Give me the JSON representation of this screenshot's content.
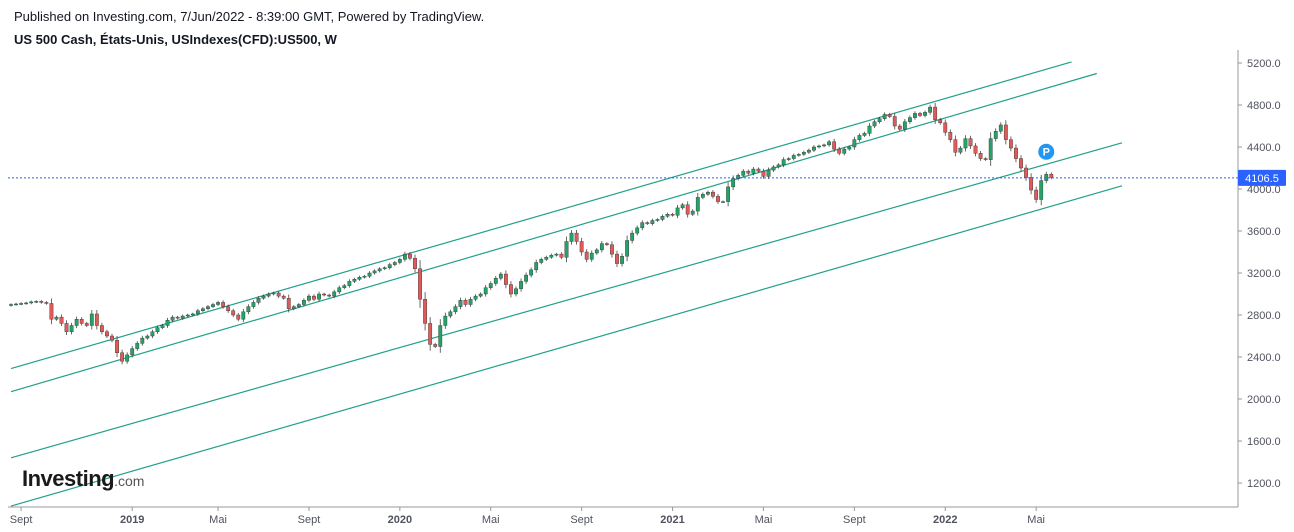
{
  "header": {
    "published": "Published on Investing.com, 7/Jun/2022 - 8:39:00 GMT, Powered by TradingView.",
    "title": "US 500 Cash, États-Unis, USIndexes(CFD):US500, W"
  },
  "logo": {
    "main": "Investing",
    "suffix": ".com"
  },
  "colors": {
    "up": "#26a269",
    "down": "#e05a5a",
    "wick": "#444444",
    "channel": "#21a08a",
    "price_line": "#2962ff",
    "price_label_bg": "#2962ff",
    "marker": "#2196f3"
  },
  "chart_data": {
    "type": "candlestick",
    "timeframe": "W",
    "ylim": [
      1000,
      5300
    ],
    "y_ticks": [
      1200,
      1600,
      2000,
      2400,
      2800,
      3200,
      3600,
      4000,
      4400,
      4800,
      5200
    ],
    "y_tick_labels": [
      "1200.0",
      "1600.0",
      "2000.0",
      "2400.0",
      "2800.0",
      "3200.0",
      "3600.0",
      "4000.0",
      "4400.0",
      "4800.0",
      "5200.0"
    ],
    "x_tick_labels": [
      "Sept",
      "2019",
      "Mai",
      "Sept",
      "2020",
      "Mai",
      "Sept",
      "2021",
      "Mai",
      "Sept",
      "2022",
      "Mai"
    ],
    "x_tick_index": [
      2,
      24,
      41,
      59,
      77,
      95,
      113,
      131,
      149,
      167,
      185,
      203
    ],
    "bold_x_labels": [
      "2019",
      "2020",
      "2021",
      "2022"
    ],
    "last_price": 4106.5,
    "last_price_label": "4106.5",
    "marker_label": "P",
    "marker_candle_index": 205,
    "marker_price": 4355,
    "channel_lines": [
      {
        "points": [
          [
            0,
            2290
          ],
          [
            210,
            5210
          ]
        ]
      },
      {
        "points": [
          [
            0,
            2070
          ],
          [
            215,
            5100
          ]
        ]
      },
      {
        "points": [
          [
            0,
            1440
          ],
          [
            220,
            4440
          ]
        ]
      },
      {
        "points": [
          [
            0,
            980
          ],
          [
            220,
            4030
          ]
        ]
      }
    ],
    "closes": [
      2900,
      2905,
      2910,
      2915,
      2925,
      2930,
      2920,
      2910,
      2760,
      2780,
      2720,
      2640,
      2700,
      2760,
      2720,
      2700,
      2810,
      2700,
      2640,
      2600,
      2560,
      2440,
      2360,
      2420,
      2480,
      2530,
      2580,
      2600,
      2640,
      2680,
      2700,
      2750,
      2780,
      2770,
      2790,
      2800,
      2810,
      2840,
      2860,
      2880,
      2900,
      2920,
      2880,
      2840,
      2800,
      2760,
      2830,
      2880,
      2920,
      2960,
      2980,
      3000,
      3010,
      2980,
      2960,
      2860,
      2880,
      2900,
      2940,
      2980,
      2950,
      3000,
      2990,
      2980,
      3020,
      3060,
      3080,
      3120,
      3140,
      3160,
      3170,
      3200,
      3220,
      3240,
      3250,
      3280,
      3300,
      3330,
      3380,
      3340,
      3240,
      2950,
      2720,
      2520,
      2500,
      2700,
      2790,
      2830,
      2880,
      2940,
      2900,
      2950,
      2980,
      3000,
      3060,
      3100,
      3150,
      3190,
      3090,
      3000,
      3050,
      3120,
      3180,
      3230,
      3300,
      3330,
      3350,
      3370,
      3380,
      3350,
      3500,
      3580,
      3500,
      3400,
      3330,
      3390,
      3420,
      3480,
      3470,
      3380,
      3290,
      3360,
      3510,
      3580,
      3630,
      3680,
      3670,
      3700,
      3710,
      3740,
      3760,
      3750,
      3820,
      3850,
      3760,
      3790,
      3920,
      3950,
      3970,
      3930,
      3880,
      3880,
      4020,
      4100,
      4130,
      4170,
      4150,
      4190,
      4170,
      4120,
      4180,
      4210,
      4230,
      4280,
      4290,
      4320,
      4330,
      4350,
      4370,
      4400,
      4410,
      4420,
      4450,
      4380,
      4340,
      4380,
      4400,
      4470,
      4510,
      4530,
      4600,
      4640,
      4670,
      4710,
      4690,
      4600,
      4570,
      4640,
      4680,
      4720,
      4700,
      4730,
      4780,
      4660,
      4630,
      4540,
      4470,
      4350,
      4390,
      4480,
      4410,
      4340,
      4290,
      4280,
      4480,
      4550,
      4610,
      4470,
      4390,
      4290,
      4200,
      4110,
      3990,
      3900,
      4080,
      4140,
      4110
    ]
  }
}
